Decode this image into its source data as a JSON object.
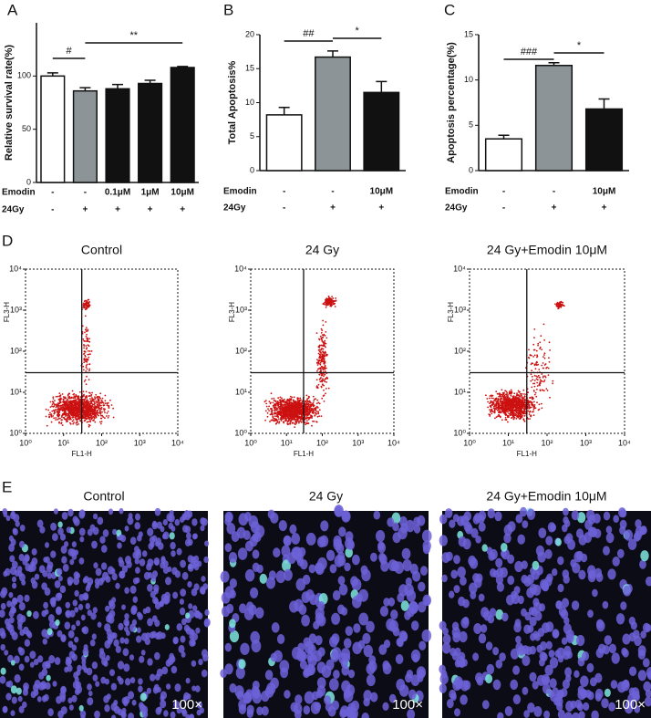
{
  "panel_labels": [
    "A",
    "B",
    "C",
    "D",
    "E"
  ],
  "chart_data": [
    {
      "type": "bar",
      "y_label": "Relative survival rate(%)",
      "ylim": [
        0,
        150
      ],
      "yticks": [
        0,
        50,
        100
      ],
      "values": [
        100,
        86,
        88,
        93,
        108
      ],
      "errors": [
        3,
        3,
        4,
        3,
        1
      ],
      "colors": [
        "#ffffff",
        "#8d9497",
        "#111111",
        "#111111",
        "#111111"
      ],
      "conditions": [
        {
          "name": "Emodin",
          "labels": [
            "-",
            "-",
            "0.1μM",
            "1μM",
            "10μM"
          ]
        },
        {
          "name": "24Gy",
          "labels": [
            "-",
            "+",
            "+",
            "+",
            "+"
          ]
        }
      ],
      "annotations": [
        "#",
        "**"
      ]
    },
    {
      "type": "bar",
      "y_label": "Total Apoptosis%",
      "ylim": [
        0,
        20
      ],
      "yticks": [
        0,
        5,
        10,
        15,
        20
      ],
      "values": [
        8.2,
        16.7,
        11.5
      ],
      "errors": [
        1.1,
        0.9,
        1.6
      ],
      "colors": [
        "#ffffff",
        "#8d9497",
        "#111111"
      ],
      "conditions": [
        {
          "name": "Emodin",
          "labels": [
            "-",
            "-",
            "10μM"
          ]
        },
        {
          "name": "24Gy",
          "labels": [
            "-",
            "+",
            "+"
          ]
        }
      ],
      "annotations": [
        "##",
        "*"
      ]
    },
    {
      "type": "bar",
      "y_label": "Apoptosis percentage(%)",
      "ylim": [
        0,
        15
      ],
      "yticks": [
        0,
        5,
        10,
        15
      ],
      "values": [
        3.5,
        11.6,
        6.8
      ],
      "errors": [
        0.4,
        0.3,
        1.1
      ],
      "colors": [
        "#ffffff",
        "#8d9497",
        "#111111"
      ],
      "conditions": [
        {
          "name": "Emodin",
          "labels": [
            "-",
            "-",
            "10μM"
          ]
        },
        {
          "name": "24Gy",
          "labels": [
            "-",
            "+",
            "+"
          ]
        }
      ],
      "annotations": [
        "###",
        "*"
      ]
    }
  ],
  "flow": {
    "x_label": "FL1-H",
    "y_label": "FL3-H",
    "log": true,
    "color": "#cc1111",
    "xlim": [
      1,
      10000
    ],
    "ylim": [
      1,
      10000
    ],
    "ticks": [
      {
        "value": 1,
        "label": "10⁰"
      },
      {
        "value": 10,
        "label": "10¹"
      },
      {
        "value": 100,
        "label": "10²"
      },
      {
        "value": 1000,
        "label": "10³"
      },
      {
        "value": 10000,
        "label": "10⁴"
      }
    ],
    "gate": {
      "x": 30,
      "y": 30
    },
    "panels": [
      {
        "title": "Control"
      },
      {
        "title": "24 Gy"
      },
      {
        "title": "24 Gy+Emodin 10μM"
      }
    ]
  },
  "images": {
    "panels": [
      {
        "title": "Control",
        "magnification": "100×"
      },
      {
        "title": "24 Gy",
        "magnification": "100×"
      },
      {
        "title": "24 Gy+Emodin 10μM",
        "magnification": "100×"
      }
    ]
  }
}
